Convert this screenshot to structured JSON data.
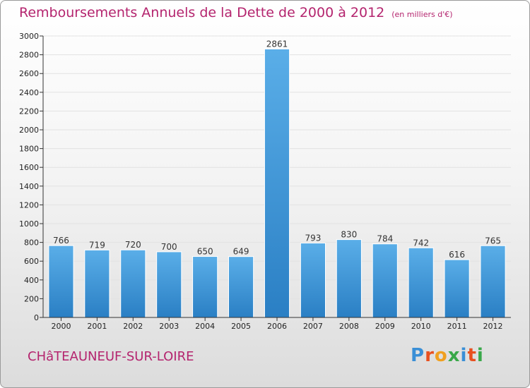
{
  "header": {
    "title": "Remboursements Annuels de la Dette de 2000 à 2012",
    "unit": "(en milliers d'€)"
  },
  "footer": {
    "commune": "CHâTEAUNEUF-SUR-LOIRE"
  },
  "logo": {
    "text": "Proxiti",
    "colors": [
      "#3a8fd6",
      "#e8501f",
      "#f0a020",
      "#3aa84a",
      "#3a8fd6",
      "#e8501f",
      "#3aa84a"
    ]
  },
  "colors": {
    "bar_light": "#5aaee8",
    "bar_dark": "#2a7fc4",
    "axis": "#333333",
    "grid": "#e2e2e2"
  },
  "chart_data": {
    "type": "bar",
    "title": "Remboursements Annuels de la Dette de 2000 à 2012",
    "subtitle": "(en milliers d'€)",
    "xlabel": "",
    "ylabel": "",
    "categories": [
      "2000",
      "2001",
      "2002",
      "2003",
      "2004",
      "2005",
      "2006",
      "2007",
      "2008",
      "2009",
      "2010",
      "2011",
      "2012"
    ],
    "values": [
      766,
      719,
      720,
      700,
      650,
      649,
      2861,
      793,
      830,
      784,
      742,
      616,
      765
    ],
    "ylim": [
      0,
      3000
    ],
    "yticks": [
      0,
      200,
      400,
      600,
      800,
      1000,
      1200,
      1400,
      1600,
      1800,
      2000,
      2200,
      2400,
      2600,
      2800,
      3000
    ],
    "grid": true,
    "legend": "none"
  }
}
